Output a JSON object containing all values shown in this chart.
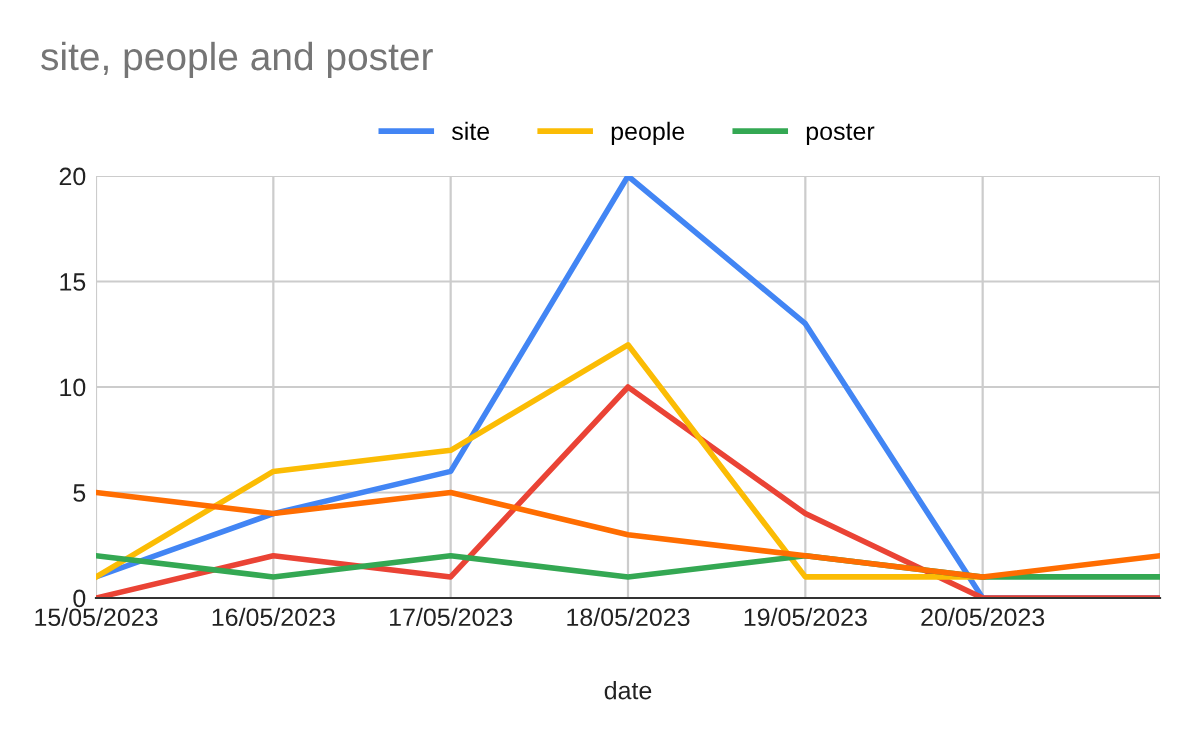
{
  "chart_data": {
    "type": "line",
    "title": "site, people and poster",
    "xlabel": "date",
    "categories": [
      "15/05/2023",
      "16/05/2023",
      "17/05/2023",
      "18/05/2023",
      "19/05/2023",
      "20/05/2023",
      null
    ],
    "series": [
      {
        "name": "site",
        "color": "#4285f4",
        "values": [
          1,
          4,
          6,
          20,
          13,
          0,
          0
        ]
      },
      {
        "color": "#ea4335",
        "values": [
          0,
          2,
          1,
          10,
          4,
          0,
          0
        ]
      },
      {
        "name": "people",
        "color": "#fbbc04",
        "values": [
          1,
          6,
          7,
          12,
          1,
          1,
          null
        ]
      },
      {
        "name": "poster",
        "color": "#34a853",
        "values": [
          2,
          1,
          2,
          1,
          2,
          1,
          1
        ]
      },
      {
        "color": "#ff6d01",
        "values": [
          5,
          4,
          5,
          3,
          2,
          1,
          2
        ]
      }
    ],
    "ylim": [
      0,
      20
    ],
    "yticks": [
      0,
      5,
      10,
      15,
      20
    ],
    "grid": true,
    "legend": "top",
    "marker": "none",
    "line_style": "solid"
  }
}
